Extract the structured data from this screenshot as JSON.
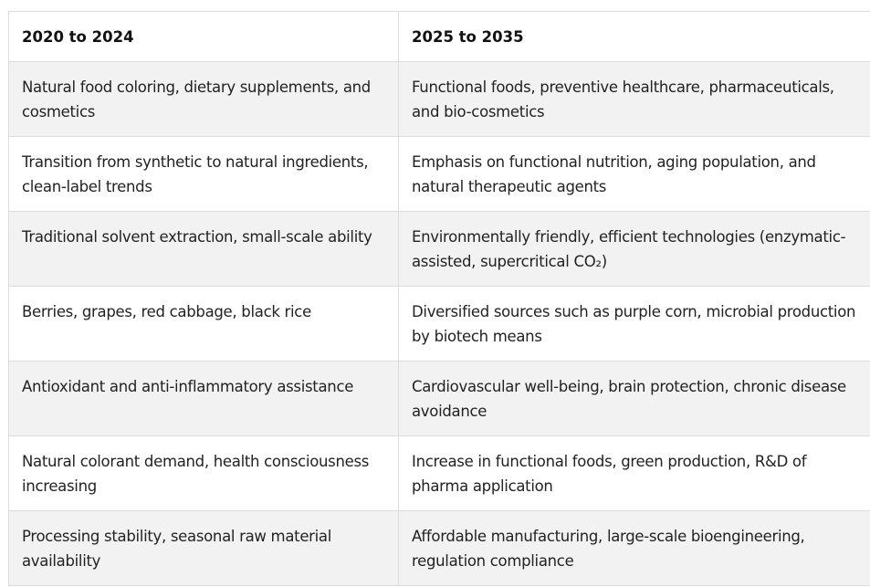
{
  "table": {
    "headers": [
      "2020 to 2024",
      "2025 to 2035"
    ],
    "rows": [
      [
        "Natural food coloring, dietary supplements, and cosmetics",
        "Functional foods, preventive healthcare, pharmaceuticals, and bio-cosmetics"
      ],
      [
        "Transition from synthetic to natural ingredients, clean-label trends",
        "Emphasis on functional nutrition, aging population, and natural therapeutic agents"
      ],
      [
        "Traditional solvent extraction, small-scale ability",
        "Environmentally friendly, efficient technologies (enzymatic-assisted, supercritical CO₂)"
      ],
      [
        "Berries, grapes, red cabbage, black rice",
        "Diversified sources such as purple corn, microbial production by biotech means"
      ],
      [
        "Antioxidant and anti-inflammatory assistance",
        "Cardiovascular well-being, brain protection, chronic disease avoidance"
      ],
      [
        "Natural colorant demand, health consciousness increasing",
        "Increase in functional foods, green production, R&D of pharma application"
      ],
      [
        "Processing stability, seasonal raw material availability",
        "Affordable manufacturing, large-scale bioengineering, regulation compliance"
      ]
    ]
  },
  "colors": {
    "border": "#dcdcdc",
    "stripe": "#f2f2f2",
    "text": "#222222"
  }
}
